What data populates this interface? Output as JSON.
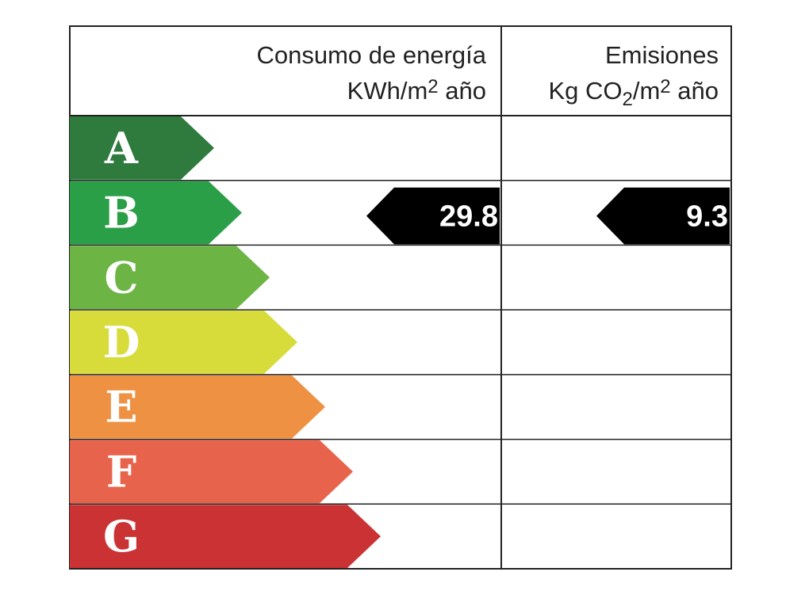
{
  "header": {
    "energy": {
      "line1": "Consumo de energía",
      "unit": "KWh/m",
      "unit_sup": "2",
      "unit_tail": " año"
    },
    "emissions": {
      "line1": "Emisiones",
      "unit": "Kg CO",
      "unit_sub": "2",
      "unit_mid": "/m",
      "unit_sup": "2",
      "unit_tail": " año"
    }
  },
  "rows": [
    {
      "letter": "A",
      "color": "#2e7b3d"
    },
    {
      "letter": "B",
      "color": "#2a9f48",
      "energy": "29.8",
      "emissions": "9.3"
    },
    {
      "letter": "C",
      "color": "#6cb544"
    },
    {
      "letter": "D",
      "color": "#d8dc3b"
    },
    {
      "letter": "E",
      "color": "#ef9142"
    },
    {
      "letter": "F",
      "color": "#e8634b"
    },
    {
      "letter": "G",
      "color": "#cb3234"
    }
  ]
}
